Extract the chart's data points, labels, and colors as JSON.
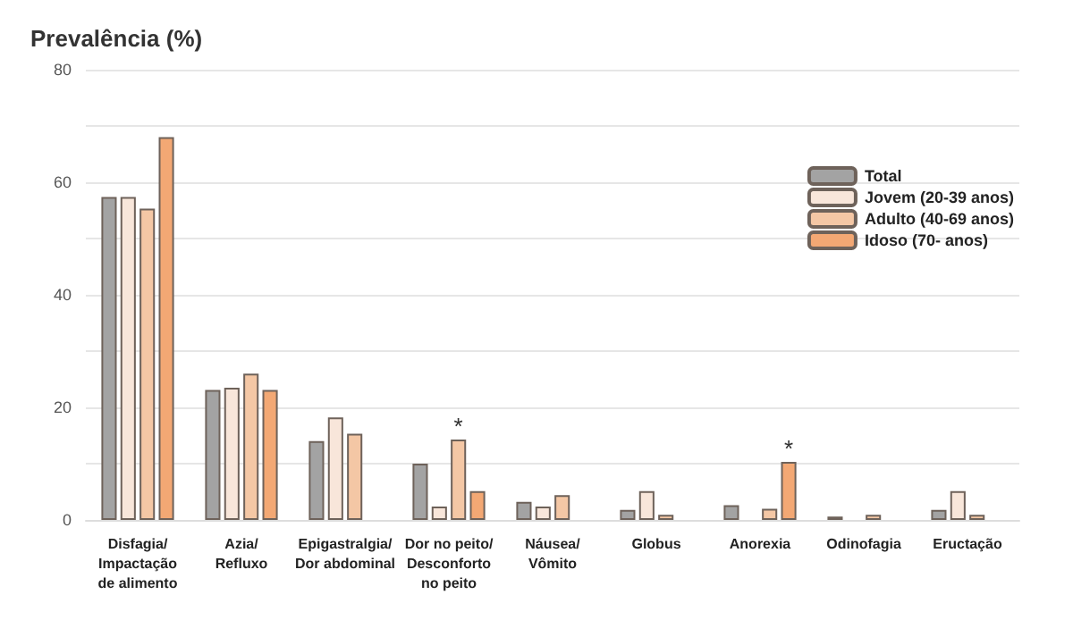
{
  "chart_data": {
    "type": "bar",
    "title": "Prevalência (%)",
    "categories": [
      "Disfagia/\nImpactação\nde alimento",
      "Azia/\nRefluxo",
      "Epigastralgia/\nDor abdominal",
      "Dor no peito/\nDesconforto\nno peito",
      "Náusea/\nVômito",
      "Globus",
      "Anorexia",
      "Odinofagia",
      "Eructação"
    ],
    "series": [
      {
        "name": "Total",
        "color": "#a3a3a3",
        "values": [
          57.4,
          23.1,
          14,
          10,
          3.2,
          1.8,
          2.6,
          0.6,
          1.8
        ]
      },
      {
        "name": "Jovem (20-39 anos)",
        "color": "#f8e6da",
        "values": [
          57.4,
          23.5,
          18.2,
          2.4,
          2.4,
          5.1,
          null,
          null,
          5.1
        ]
      },
      {
        "name": "Adulto (40-69 anos)",
        "color": "#f4c7a5",
        "values": [
          55.3,
          26,
          15.3,
          14.3,
          4.4,
          0.9,
          2,
          0.9,
          0.9
        ],
        "value_labels": [
          null,
          null,
          null,
          "*",
          null,
          null,
          null,
          null,
          null
        ]
      },
      {
        "name": "Idoso (70- anos)",
        "color": "#f3a874",
        "values": [
          68,
          23.1,
          null,
          5.1,
          null,
          null,
          10.3,
          null,
          null
        ],
        "value_labels": [
          null,
          null,
          null,
          null,
          null,
          null,
          "*",
          null,
          null
        ]
      }
    ],
    "ylim": [
      0,
      80
    ],
    "yticks": [
      0,
      {
        "value": 10,
        "label": null
      },
      20,
      {
        "value": 30,
        "label": null
      },
      40,
      {
        "value": 50,
        "label": null
      },
      60,
      {
        "value": 70,
        "label": null
      },
      80
    ],
    "grid": true,
    "legend": "top right"
  }
}
